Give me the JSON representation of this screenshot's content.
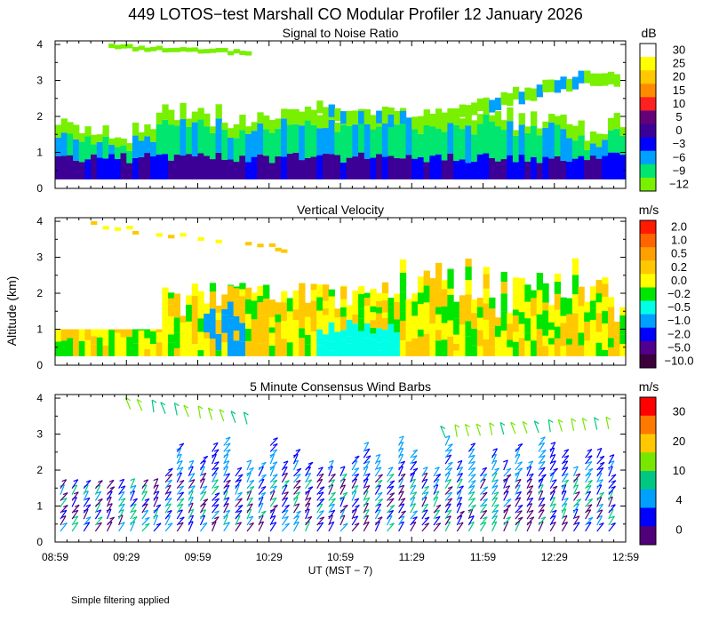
{
  "title": "449 LOTOS−test Marshall CO Modular Profiler 12 January 2026",
  "ylabel": "Altitude (km)",
  "xlabel": "UT  (MST − 7)",
  "footnote": "Simple filtering applied",
  "x_ticks": [
    "08:59",
    "09:29",
    "09:59",
    "10:29",
    "10:59",
    "11:29",
    "11:59",
    "12:29",
    "12:59"
  ],
  "y_ticks": [
    "0",
    "1",
    "2",
    "3",
    "4"
  ],
  "chart_data": [
    {
      "type": "heatmap",
      "title": "Signal to Noise Ratio",
      "unit": "dB",
      "ylim": [
        0,
        4.1
      ],
      "x_range": [
        "08:59",
        "12:59"
      ],
      "colorbar": {
        "labels": [
          "30",
          "25",
          "20",
          "15",
          "10",
          "5",
          "0",
          "−3",
          "−6",
          "−9",
          "−12"
        ],
        "colors": [
          "#ffffff",
          "#ffff00",
          "#ffc800",
          "#ff8c00",
          "#ff2020",
          "#640078",
          "#3c0096",
          "#0000ff",
          "#00a0ff",
          "#00e66e",
          "#78f000"
        ]
      }
    },
    {
      "type": "heatmap",
      "title": "Vertical Velocity",
      "unit": "m/s",
      "ylim": [
        0,
        4.1
      ],
      "x_range": [
        "08:59",
        "12:59"
      ],
      "colorbar": {
        "labels": [
          "2.0",
          "1.0",
          "0.5",
          "0.2",
          "0.0",
          "−0.2",
          "−0.5",
          "−1.0",
          "−2.0",
          "−5.0",
          "−10.0"
        ],
        "colors": [
          "#ff1a00",
          "#ff6400",
          "#ffa000",
          "#ffc800",
          "#ffff00",
          "#00e600",
          "#00ffe6",
          "#00a0ff",
          "#0000ff",
          "#50008c",
          "#3c003c"
        ]
      }
    },
    {
      "type": "wind-barbs",
      "title": "5 Minute Consensus Wind Barbs",
      "unit": "m/s",
      "ylim": [
        0,
        4.1
      ],
      "x_range": [
        "08:59",
        "12:59"
      ],
      "colorbar": {
        "labels": [
          "30",
          "20",
          "10",
          "4",
          "0"
        ],
        "colors": [
          "#ff0000",
          "#ff7800",
          "#ffc800",
          "#78e600",
          "#00c882",
          "#00a0ff",
          "#0000ff",
          "#500078"
        ]
      }
    }
  ]
}
